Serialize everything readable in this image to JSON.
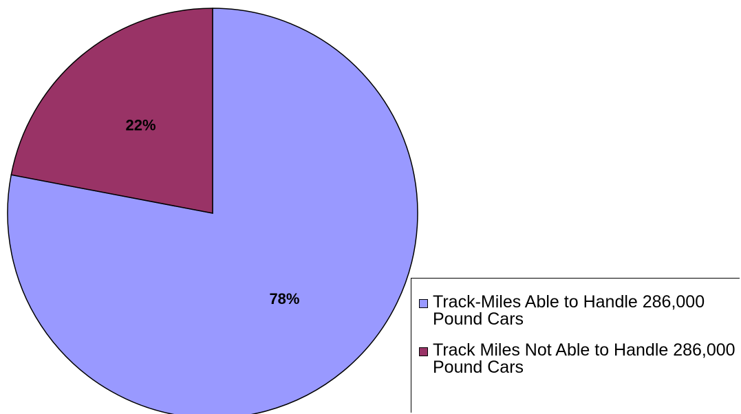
{
  "chart_data": {
    "type": "pie",
    "categories": [
      "Track-Miles Able to Handle 286,000 Pound Cars",
      "Track Miles Not Able to Handle 286,000 Pound Cars"
    ],
    "values": [
      78,
      22
    ],
    "value_labels": [
      "78%",
      "22%"
    ],
    "colors": [
      "#9999ff",
      "#993366"
    ],
    "legend": "right"
  }
}
